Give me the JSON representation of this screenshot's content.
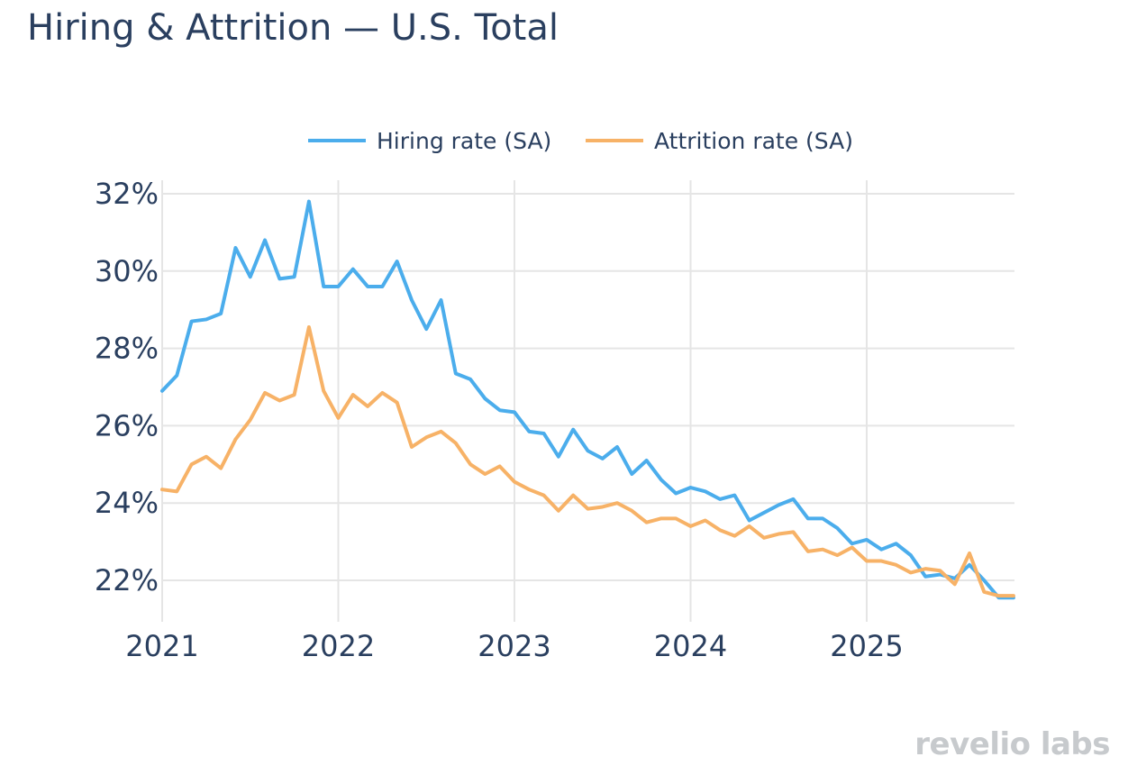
{
  "title": "Hiring & Attrition — U.S. Total",
  "brand": "revelio labs",
  "colors": {
    "hiring": "#4badec",
    "attrition": "#f7b267",
    "grid": "#e5e5e5",
    "text": "#2a3f5f"
  },
  "chart_data": {
    "type": "line",
    "title": "Hiring & Attrition — U.S. Total",
    "xlabel": "",
    "ylabel": "",
    "xlim": [
      "2021-01",
      "2025-11"
    ],
    "ylim": [
      21,
      32.4
    ],
    "x_ticks": [
      "2021",
      "2022",
      "2023",
      "2024",
      "2025"
    ],
    "y_ticks": [
      "22%",
      "24%",
      "26%",
      "28%",
      "30%",
      "32%"
    ],
    "y_tick_values": [
      22,
      24,
      26,
      28,
      30,
      32
    ],
    "grid": true,
    "legend_position": "top",
    "x": [
      "2021-01",
      "2021-02",
      "2021-03",
      "2021-04",
      "2021-05",
      "2021-06",
      "2021-07",
      "2021-08",
      "2021-09",
      "2021-10",
      "2021-11",
      "2021-12",
      "2022-01",
      "2022-02",
      "2022-03",
      "2022-04",
      "2022-05",
      "2022-06",
      "2022-07",
      "2022-08",
      "2022-09",
      "2022-10",
      "2022-11",
      "2022-12",
      "2023-01",
      "2023-02",
      "2023-03",
      "2023-04",
      "2023-05",
      "2023-06",
      "2023-07",
      "2023-08",
      "2023-09",
      "2023-10",
      "2023-11",
      "2023-12",
      "2024-01",
      "2024-02",
      "2024-03",
      "2024-04",
      "2024-05",
      "2024-06",
      "2024-07",
      "2024-08",
      "2024-09",
      "2024-10",
      "2024-11",
      "2024-12",
      "2025-01",
      "2025-02",
      "2025-03",
      "2025-04",
      "2025-05",
      "2025-06",
      "2025-07",
      "2025-08",
      "2025-09",
      "2025-10",
      "2025-11"
    ],
    "series": [
      {
        "name": "Hiring rate (SA)",
        "color": "#4badec",
        "values": [
          26.9,
          27.3,
          28.7,
          28.75,
          28.9,
          30.6,
          29.85,
          30.8,
          29.8,
          29.85,
          31.8,
          29.6,
          29.6,
          30.05,
          29.6,
          29.6,
          30.25,
          29.25,
          28.5,
          29.25,
          27.35,
          27.2,
          26.7,
          26.4,
          26.35,
          25.85,
          25.8,
          25.2,
          25.9,
          25.35,
          25.15,
          25.45,
          24.75,
          25.1,
          24.6,
          24.25,
          24.4,
          24.3,
          24.1,
          24.2,
          23.55,
          23.75,
          23.95,
          24.1,
          23.6,
          23.6,
          23.35,
          22.95,
          23.05,
          22.8,
          22.95,
          22.65,
          22.1,
          22.15,
          22.05,
          22.4,
          22.0,
          21.55,
          21.55
        ]
      },
      {
        "name": "Attrition rate (SA)",
        "color": "#f7b267",
        "values": [
          24.35,
          24.3,
          25.0,
          25.2,
          24.9,
          25.65,
          26.15,
          26.85,
          26.65,
          26.8,
          28.55,
          26.9,
          26.2,
          26.8,
          26.5,
          26.85,
          26.6,
          25.45,
          25.7,
          25.85,
          25.55,
          25.0,
          24.75,
          24.95,
          24.55,
          24.35,
          24.2,
          23.8,
          24.2,
          23.85,
          23.9,
          24.0,
          23.8,
          23.5,
          23.6,
          23.6,
          23.4,
          23.55,
          23.3,
          23.15,
          23.4,
          23.1,
          23.2,
          23.25,
          22.75,
          22.8,
          22.65,
          22.85,
          22.5,
          22.5,
          22.4,
          22.2,
          22.3,
          22.25,
          21.9,
          22.7,
          21.7,
          21.6,
          21.6
        ]
      }
    ]
  }
}
